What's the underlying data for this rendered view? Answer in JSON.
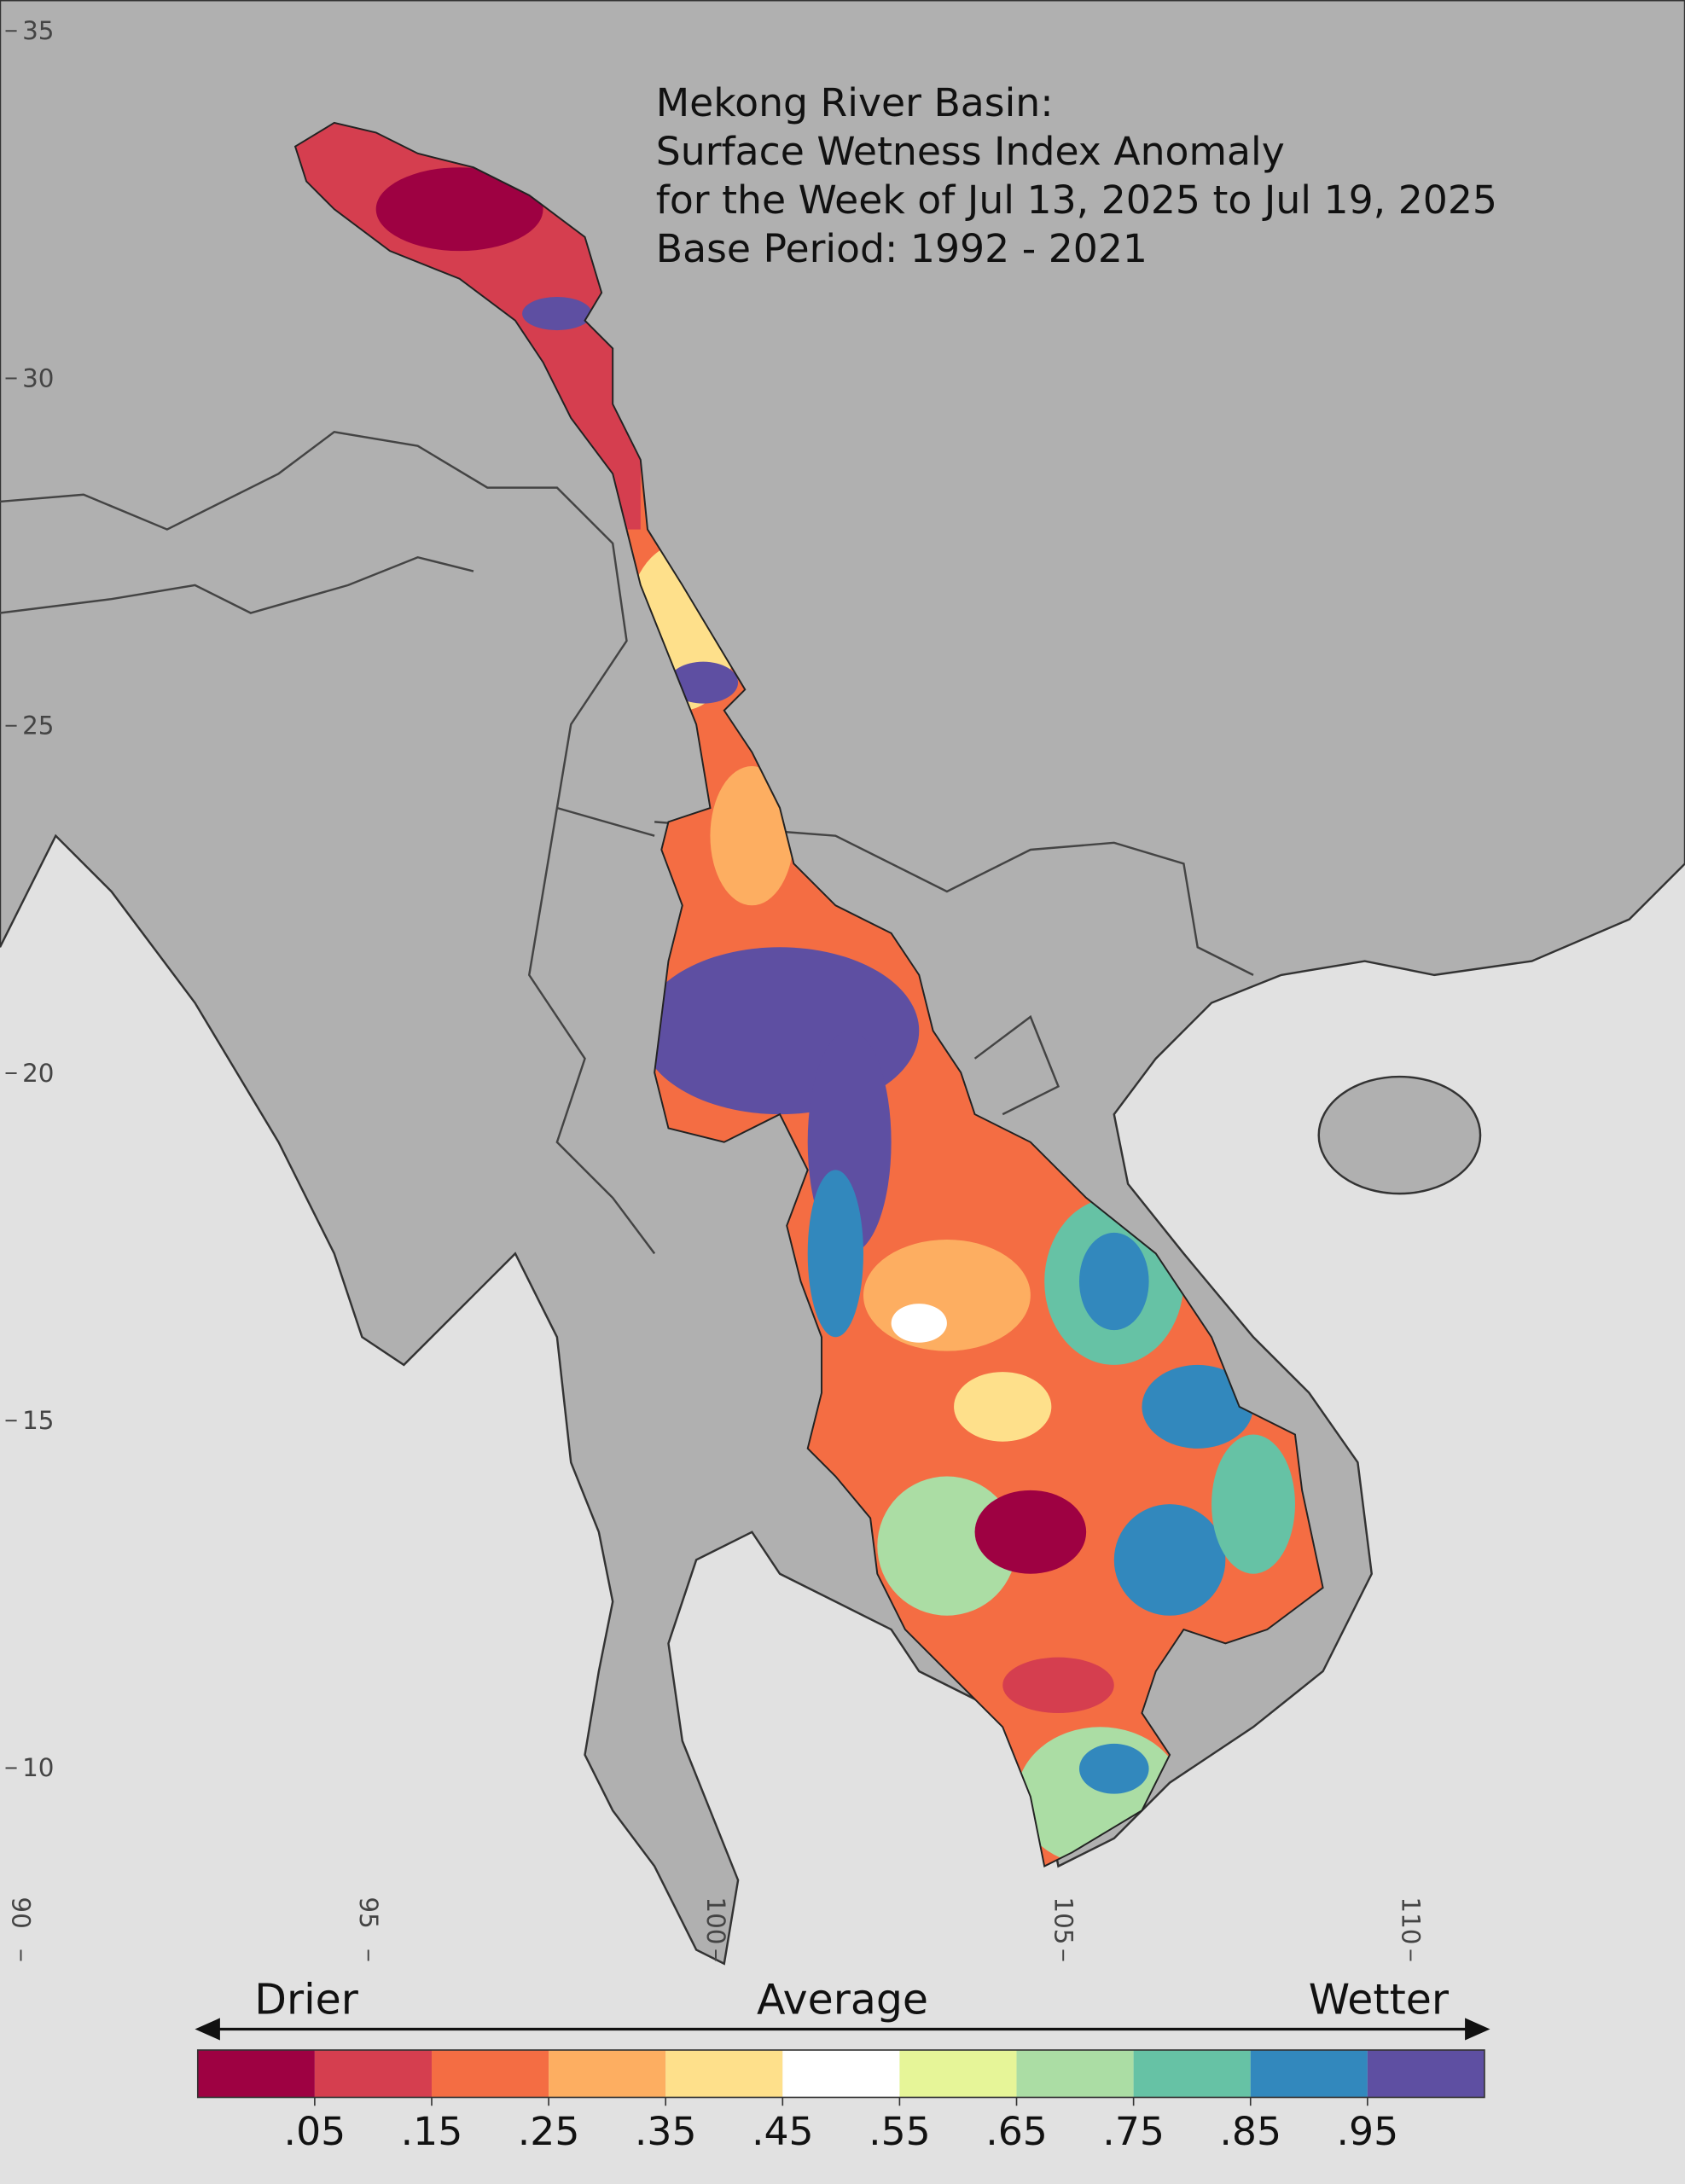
{
  "title_lines": [
    "Mekong River Basin:",
    "Surface Wetness Index Anomaly",
    "for the Week of Jul 13, 2025 to Jul 19, 2025",
    "Base Period: 1992 - 2021"
  ],
  "map": {
    "lat_ticks": [
      35,
      30,
      25,
      20,
      15,
      10
    ],
    "lon_ticks": [
      90,
      95,
      100,
      105,
      110
    ]
  },
  "legend": {
    "left_label": "Drier",
    "center_label": "Average",
    "right_label": "Wetter",
    "colors": [
      "#9e0142",
      "#d53e4f",
      "#f46d43",
      "#fdae61",
      "#fee08b",
      "#ffffff",
      "#e6f598",
      "#abdda4",
      "#66c2a5",
      "#3288bd",
      "#5e4fa2"
    ],
    "ticks": [
      {
        "value": 0.05,
        "label": ".05"
      },
      {
        "value": 0.15,
        "label": ".15"
      },
      {
        "value": 0.25,
        "label": ".25"
      },
      {
        "value": 0.35,
        "label": ".35"
      },
      {
        "value": 0.45,
        "label": ".45"
      },
      {
        "value": 0.55,
        "label": ".55"
      },
      {
        "value": 0.65,
        "label": ".65"
      },
      {
        "value": 0.75,
        "label": ".75"
      },
      {
        "value": 0.85,
        "label": ".85"
      },
      {
        "value": 0.95,
        "label": ".95"
      }
    ]
  }
}
